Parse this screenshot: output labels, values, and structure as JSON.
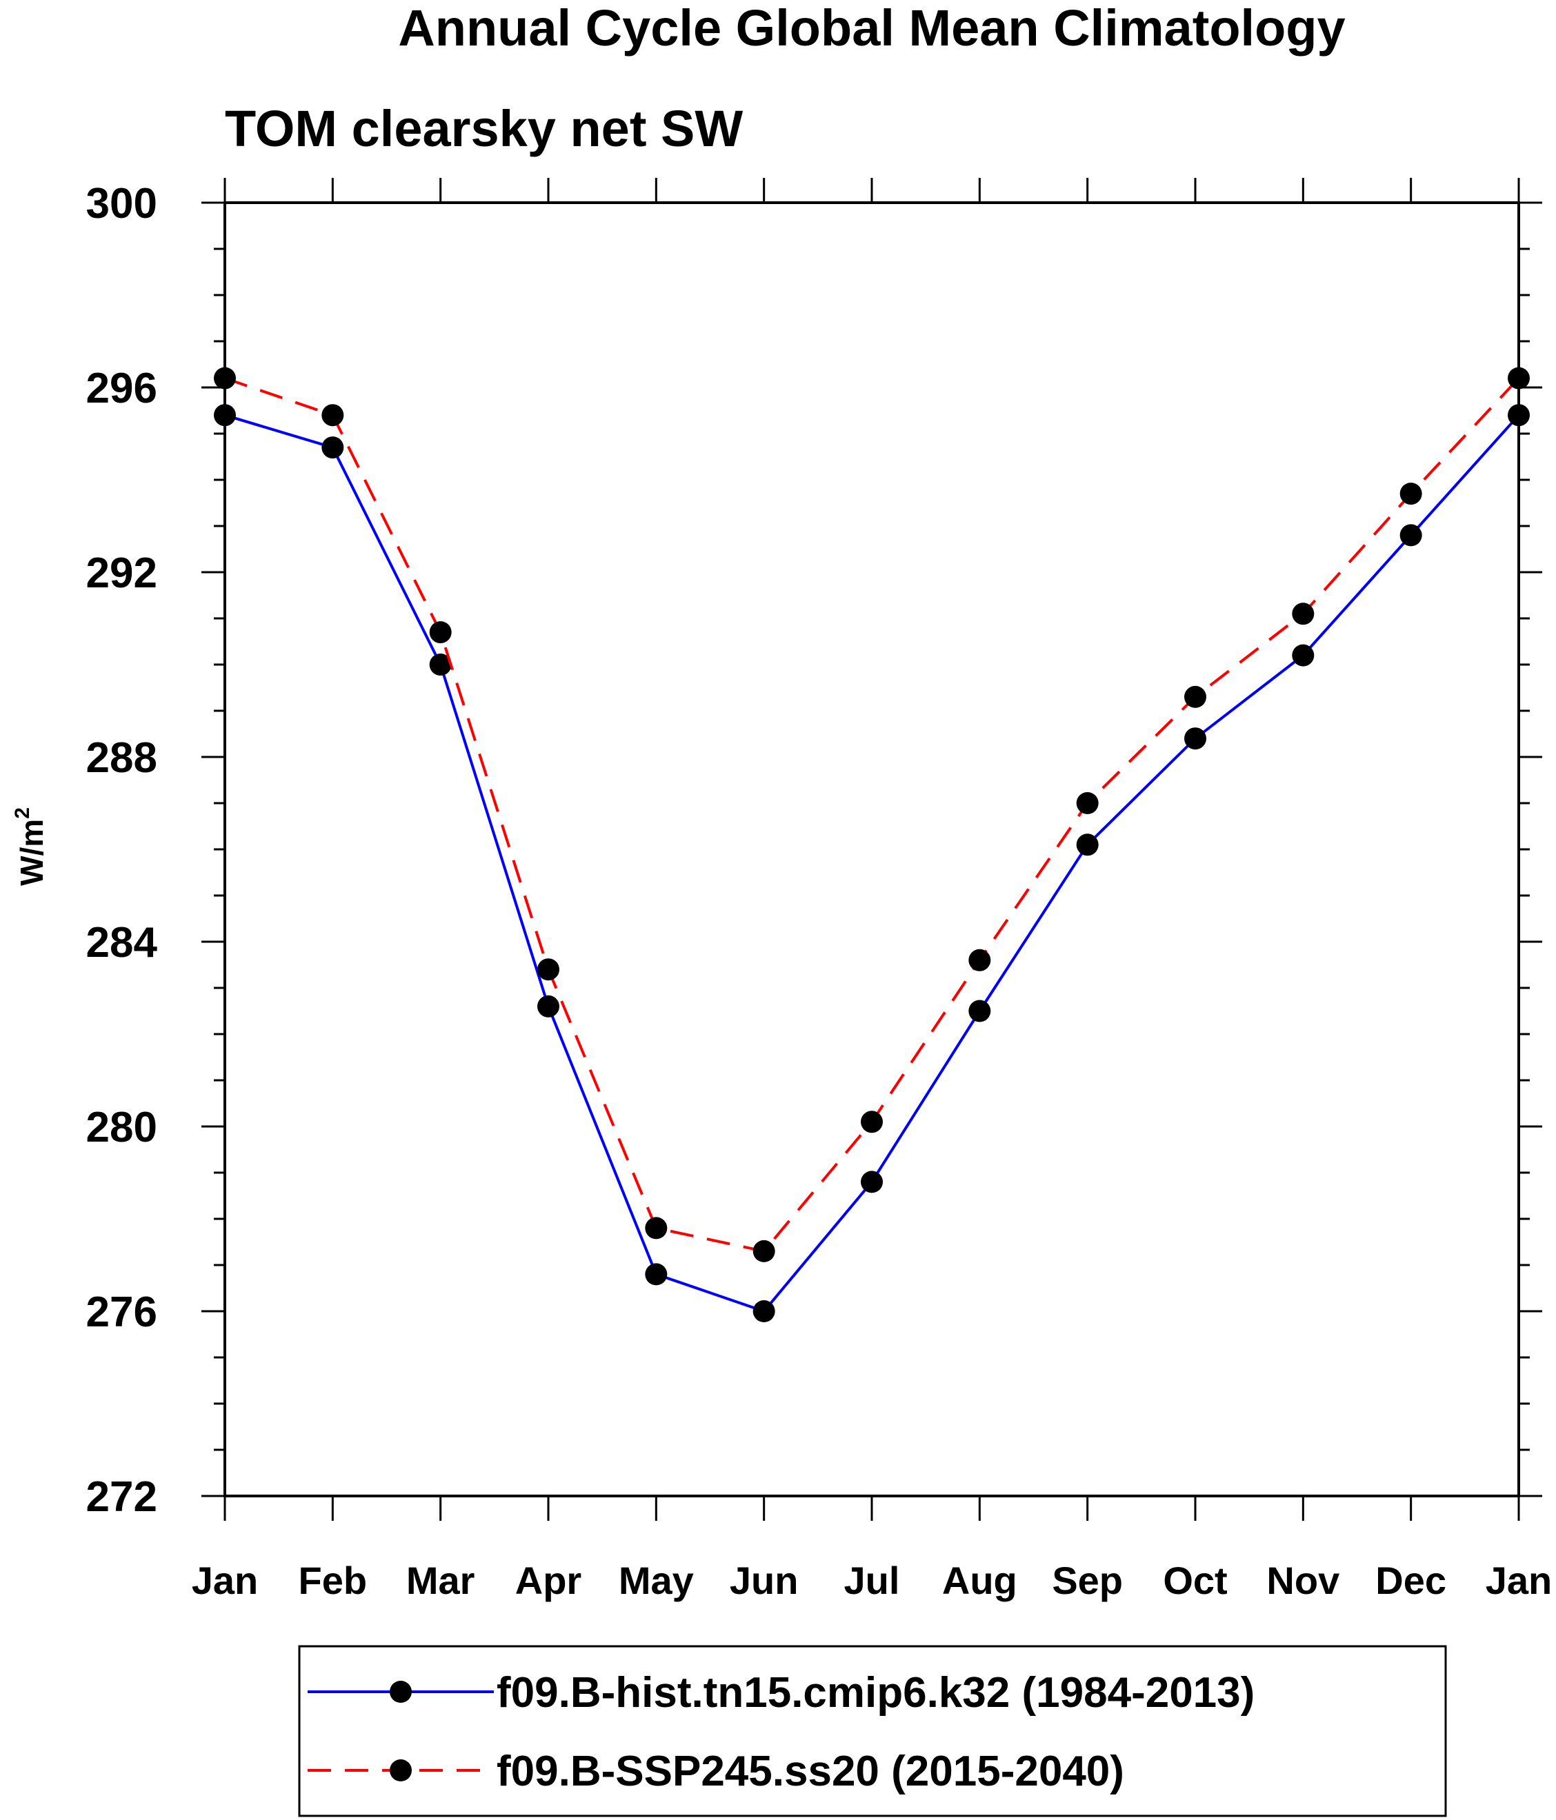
{
  "chart_data": {
    "type": "line",
    "title": "Annual Cycle Global Mean Climatology",
    "subtitle": "TOM clearsky net SW",
    "ylabel_base": "W/m",
    "ylabel_sup": "2",
    "xlabel": "",
    "categories": [
      "Jan",
      "Feb",
      "Mar",
      "Apr",
      "May",
      "Jun",
      "Jul",
      "Aug",
      "Sep",
      "Oct",
      "Nov",
      "Dec",
      "Jan"
    ],
    "ylim": [
      272,
      300
    ],
    "y_major_ticks": [
      272,
      276,
      280,
      284,
      288,
      292,
      296,
      300
    ],
    "y_minor_step": 1,
    "grid": false,
    "legend_position": "bottom",
    "series": [
      {
        "name": "f09.B-hist.tn15.cmip6.k32 (1984-2013)",
        "color": "#0000ff",
        "dash": "solid",
        "marker": "filled-circle",
        "values": [
          295.4,
          294.7,
          290.0,
          282.6,
          276.8,
          276.0,
          278.8,
          282.5,
          286.1,
          288.4,
          290.2,
          292.8,
          295.4
        ]
      },
      {
        "name": "f09.B-SSP245.ss20 (2015-2040)",
        "color": "#ff0000",
        "dash": "dashed",
        "marker": "filled-circle",
        "values": [
          296.2,
          295.4,
          290.7,
          283.4,
          277.8,
          277.3,
          280.1,
          283.6,
          287.0,
          289.3,
          291.1,
          293.7,
          296.2
        ]
      }
    ]
  }
}
